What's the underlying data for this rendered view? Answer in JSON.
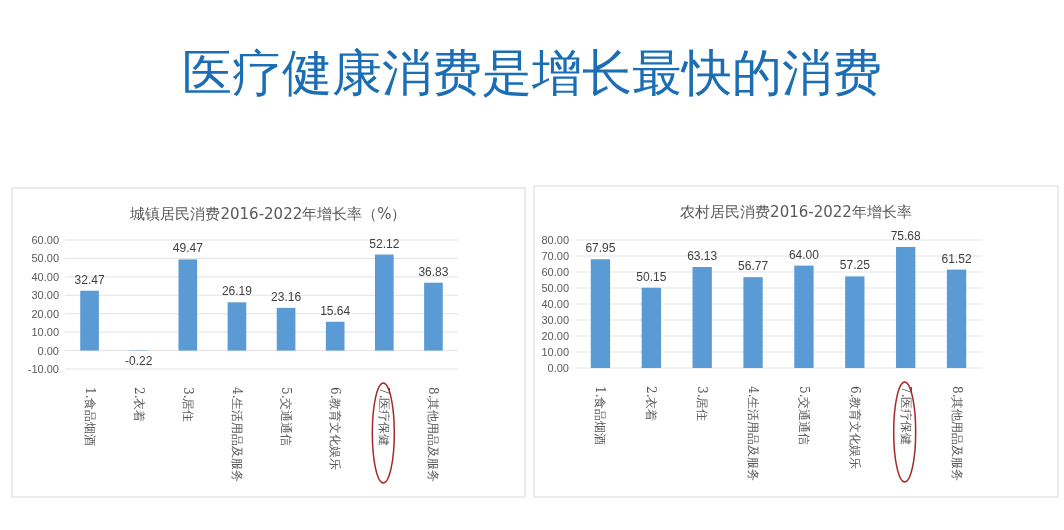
{
  "chart_data": [
    {
      "type": "other",
      "title": "医疗健康消费是增长最快的消费"
    },
    {
      "type": "bar",
      "title": "城镇居民消费2016-2022年增长率（%）",
      "categories": [
        "1.食品烟酒",
        "2.衣着",
        "3.居住",
        "4.生活用品及服务",
        "5.交通通信",
        "6.教育文化娱乐",
        "7.医疗保健",
        "8.其他用品及服务"
      ],
      "values": [
        32.47,
        -0.22,
        49.47,
        26.19,
        23.16,
        15.64,
        52.12,
        36.83
      ],
      "value_labels": [
        "32.47",
        "-0.22",
        "49.47",
        "26.19",
        "23.16",
        "15.64",
        "52.12",
        "36.83"
      ],
      "color": "#5b9bd5",
      "ylim": [
        -10,
        60
      ],
      "yticks": [
        {
          "value": -10,
          "label": "-10.00"
        },
        {
          "value": 0,
          "label": "0.00"
        },
        {
          "value": 10,
          "label": "10.00"
        },
        {
          "value": 20,
          "label": "20.00"
        },
        {
          "value": 30,
          "label": "30.00"
        },
        {
          "value": 40,
          "label": "40.00"
        },
        {
          "value": 50,
          "label": "50.00"
        },
        {
          "value": 60,
          "label": "60.00"
        }
      ],
      "grid": "y"
    },
    {
      "type": "bar",
      "title": "农村居民消费2016-2022年增长率",
      "categories": [
        "1.食品烟酒",
        "2.衣着",
        "3.居住",
        "4.生活用品及服务",
        "5.交通通信",
        "6.教育文化娱乐",
        "7.医疗保健",
        "8.其他用品及服务"
      ],
      "values": [
        67.95,
        50.15,
        63.13,
        56.77,
        64.0,
        57.25,
        75.68,
        61.52
      ],
      "value_labels": [
        "67.95",
        "50.15",
        "63.13",
        "56.77",
        "64.00",
        "57.25",
        "75.68",
        "61.52"
      ],
      "color": "#5b9bd5",
      "ylim": [
        0,
        80
      ],
      "yticks": [
        {
          "value": 0,
          "label": "0.00"
        },
        {
          "value": 10,
          "label": "10.00"
        },
        {
          "value": 20,
          "label": "20.00"
        },
        {
          "value": 30,
          "label": "30.00"
        },
        {
          "value": 40,
          "label": "40.00"
        },
        {
          "value": 50,
          "label": "50.00"
        },
        {
          "value": 60,
          "label": "60.00"
        },
        {
          "value": 70,
          "label": "70.00"
        },
        {
          "value": 80,
          "label": "80.00"
        }
      ],
      "grid": "y"
    }
  ]
}
